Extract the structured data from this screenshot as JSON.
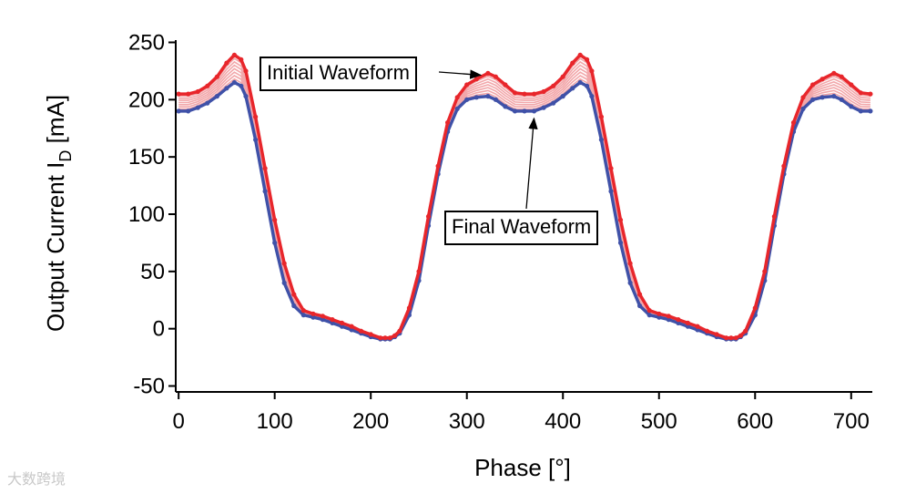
{
  "chart_data": {
    "type": "line",
    "xlabel": "Phase [°]",
    "ylabel": "Output Current  I",
    "ylabel_sub": "D",
    "ylabel_unit": " [mA]",
    "xlim": [
      -3,
      722
    ],
    "ylim": [
      -52,
      252
    ],
    "x_ticks": [
      0,
      100,
      200,
      300,
      400,
      500,
      600,
      700
    ],
    "y_ticks": [
      250,
      200,
      150,
      100,
      50,
      0,
      -50
    ],
    "n_intermediate": 7,
    "series": [
      {
        "name": "Initial Waveform",
        "color": "#e8262b",
        "x": [
          0,
          10,
          20,
          30,
          40,
          50,
          58,
          65,
          70,
          80,
          90,
          100,
          110,
          120,
          130,
          140,
          150,
          160,
          170,
          180,
          190,
          200,
          210,
          215,
          220,
          225,
          230,
          240,
          250,
          260,
          270,
          280,
          290,
          300,
          310,
          322,
          330,
          340,
          350,
          360,
          370,
          380,
          390,
          400,
          410,
          418,
          425,
          430,
          440,
          450,
          460,
          470,
          480,
          490,
          500,
          510,
          520,
          530,
          540,
          550,
          560,
          570,
          575,
          580,
          585,
          590,
          600,
          610,
          620,
          630,
          640,
          650,
          660,
          670,
          682,
          690,
          700,
          710,
          720
        ],
        "y": [
          205,
          205,
          207,
          212,
          220,
          232,
          239,
          235,
          225,
          185,
          140,
          95,
          57,
          30,
          16,
          13,
          11,
          8,
          5,
          2,
          -2,
          -5,
          -8,
          -8,
          -8,
          -6,
          -2,
          18,
          50,
          98,
          142,
          180,
          202,
          213,
          218,
          223,
          220,
          213,
          206,
          205,
          205,
          207,
          212,
          220,
          232,
          239,
          235,
          225,
          185,
          140,
          95,
          57,
          30,
          16,
          13,
          11,
          8,
          5,
          2,
          -2,
          -5,
          -8,
          -8,
          -8,
          -6,
          -2,
          18,
          50,
          98,
          142,
          180,
          202,
          213,
          218,
          223,
          220,
          213,
          206,
          205
        ]
      },
      {
        "name": "Final Waveform",
        "color": "#3f51a8",
        "x": [
          0,
          10,
          20,
          30,
          40,
          50,
          58,
          65,
          70,
          80,
          90,
          100,
          110,
          120,
          130,
          140,
          150,
          160,
          170,
          180,
          190,
          200,
          210,
          215,
          220,
          225,
          230,
          240,
          250,
          260,
          270,
          280,
          290,
          300,
          310,
          322,
          330,
          340,
          350,
          360,
          370,
          380,
          390,
          400,
          410,
          418,
          425,
          430,
          440,
          450,
          460,
          470,
          480,
          490,
          500,
          510,
          520,
          530,
          540,
          550,
          560,
          570,
          575,
          580,
          585,
          590,
          600,
          610,
          620,
          630,
          640,
          650,
          660,
          670,
          682,
          690,
          700,
          710,
          720
        ],
        "y": [
          190,
          190,
          193,
          197,
          203,
          210,
          215,
          212,
          203,
          165,
          120,
          75,
          40,
          20,
          12,
          10,
          8,
          5,
          2,
          -1,
          -4,
          -7,
          -9,
          -9,
          -9,
          -7,
          -4,
          12,
          42,
          90,
          135,
          172,
          192,
          200,
          202,
          203,
          200,
          194,
          190,
          190,
          190,
          193,
          197,
          203,
          210,
          215,
          212,
          203,
          165,
          120,
          75,
          40,
          20,
          12,
          10,
          8,
          5,
          2,
          -1,
          -4,
          -7,
          -9,
          -9,
          -9,
          -7,
          -4,
          12,
          42,
          90,
          135,
          172,
          192,
          200,
          202,
          203,
          200,
          194,
          190,
          190
        ]
      }
    ],
    "annotations": [
      {
        "text": "Initial Waveform",
        "target": [
          322,
          223
        ]
      },
      {
        "text": "Final Waveform",
        "target": [
          368,
          190
        ]
      }
    ]
  },
  "watermark": "大数跨境"
}
